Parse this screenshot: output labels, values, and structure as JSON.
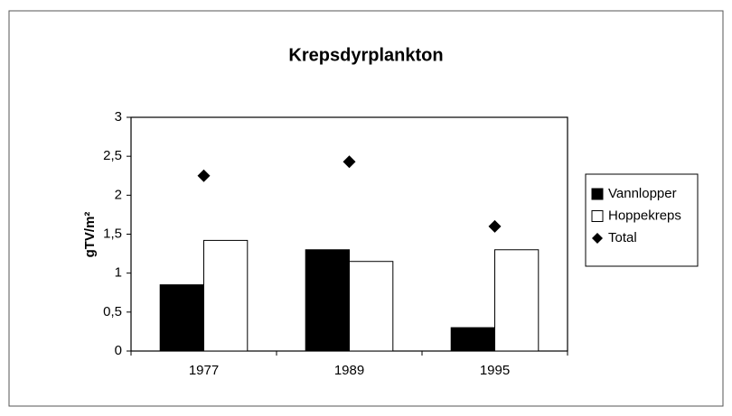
{
  "chart_data": {
    "type": "bar",
    "title": "Krepsdyrplankton",
    "y_label": "gTV/m²",
    "categories": [
      "1977",
      "1989",
      "1995"
    ],
    "series": [
      {
        "name": "Vannlopper",
        "color": "#000000",
        "type": "bar",
        "values": [
          0.85,
          1.3,
          0.3
        ]
      },
      {
        "name": "Hoppekreps",
        "color": "#ffffff",
        "type": "bar",
        "values": [
          1.42,
          1.15,
          1.3
        ]
      },
      {
        "name": "Total",
        "color": "#000000",
        "type": "scatter",
        "values": [
          2.25,
          2.43,
          1.6
        ]
      }
    ],
    "ylim": [
      0,
      3
    ],
    "yticks": [
      0,
      {
        "value": 0.5,
        "label": "0,5"
      },
      1,
      {
        "value": 1.5,
        "label": "1,5"
      },
      2,
      {
        "value": 2.5,
        "label": "2,5"
      },
      3
    ],
    "legend": "right"
  }
}
